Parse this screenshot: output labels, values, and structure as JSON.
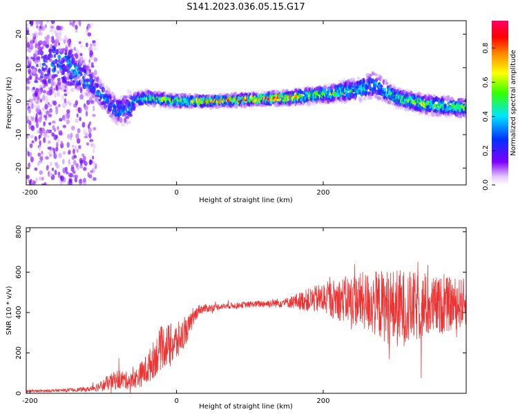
{
  "title": "S141.2023.036.05.15.G17",
  "colors": {
    "snr_line": "#ee3333",
    "frame": "#000000"
  },
  "chart_data": [
    {
      "type": "heatmap",
      "xlabel": "Height of straight line (km)",
      "ylabel": "Frequency (Hz)",
      "xlim": [
        -205,
        395
      ],
      "ylim": [
        -25,
        24
      ],
      "xticks": [
        -200,
        0,
        200
      ],
      "yticks": [
        -20,
        -10,
        0,
        10,
        20
      ],
      "colorbar": {
        "label": "Normalized spectral amplitude",
        "range": [
          0,
          0.96
        ],
        "ticks": [
          {
            "value": 0.0,
            "label": "0.0"
          },
          {
            "value": 0.2,
            "label": "0.2"
          },
          {
            "value": 0.4,
            "label": "0.4"
          },
          {
            "value": 0.6,
            "label": "0.6"
          },
          {
            "value": 0.8,
            "label": "0.8"
          }
        ],
        "colormap": "rainbow (white - violet - blue - cyan - green - yellow - red - magenta)"
      },
      "ridge": [
        {
          "x": -200,
          "f": 9,
          "w": 13,
          "a": 0.12
        },
        {
          "x": -170,
          "f": 11,
          "w": 8,
          "a": 0.25
        },
        {
          "x": -150,
          "f": 11,
          "w": 6,
          "a": 0.35
        },
        {
          "x": -130,
          "f": 8,
          "w": 4,
          "a": 0.35
        },
        {
          "x": -110,
          "f": 4,
          "w": 3,
          "a": 0.3
        },
        {
          "x": -95,
          "f": 0,
          "w": 3,
          "a": 0.3
        },
        {
          "x": -80,
          "f": -3,
          "w": 3,
          "a": 0.28
        },
        {
          "x": -65,
          "f": -2,
          "w": 4,
          "a": 0.25
        },
        {
          "x": -55,
          "f": 0.5,
          "w": 1.5,
          "a": 0.4
        },
        {
          "x": -40,
          "f": 1,
          "w": 1.5,
          "a": 0.45
        },
        {
          "x": 0,
          "f": 0,
          "w": 1.3,
          "a": 0.55
        },
        {
          "x": 50,
          "f": 0,
          "w": 1.2,
          "a": 0.65
        },
        {
          "x": 100,
          "f": 0.5,
          "w": 1.2,
          "a": 0.75
        },
        {
          "x": 150,
          "f": 1,
          "w": 1.4,
          "a": 0.7
        },
        {
          "x": 200,
          "f": 2,
          "w": 1.8,
          "a": 0.5
        },
        {
          "x": 250,
          "f": 3.5,
          "w": 2.5,
          "a": 0.4
        },
        {
          "x": 270,
          "f": 5,
          "w": 3,
          "a": 0.3
        },
        {
          "x": 300,
          "f": 1,
          "w": 2,
          "a": 0.45
        },
        {
          "x": 340,
          "f": -1,
          "w": 2,
          "a": 0.5
        },
        {
          "x": 395,
          "f": -2,
          "w": 2,
          "a": 0.45
        }
      ]
    },
    {
      "type": "line",
      "xlabel": "Height of straight line (km)",
      "ylabel": "SNR (10 * v/v)",
      "xlim": [
        -205,
        395
      ],
      "ylim": [
        0,
        820
      ],
      "xticks": [
        -200,
        0,
        200
      ],
      "yticks": [
        0,
        200,
        400,
        600,
        800
      ],
      "series": [
        {
          "points": [
            {
              "x": -205,
              "y": 10,
              "spread": 5
            },
            {
              "x": -150,
              "y": 15,
              "spread": 8
            },
            {
              "x": -120,
              "y": 20,
              "spread": 12
            },
            {
              "x": -100,
              "y": 40,
              "spread": 30
            },
            {
              "x": -80,
              "y": 70,
              "spread": 50
            },
            {
              "x": -60,
              "y": 60,
              "spread": 40
            },
            {
              "x": -40,
              "y": 120,
              "spread": 80
            },
            {
              "x": -20,
              "y": 230,
              "spread": 110
            },
            {
              "x": 0,
              "y": 250,
              "spread": 100
            },
            {
              "x": 15,
              "y": 320,
              "spread": 60
            },
            {
              "x": 30,
              "y": 415,
              "spread": 25
            },
            {
              "x": 60,
              "y": 430,
              "spread": 15
            },
            {
              "x": 100,
              "y": 440,
              "spread": 15
            },
            {
              "x": 150,
              "y": 450,
              "spread": 25
            },
            {
              "x": 200,
              "y": 470,
              "spread": 80
            },
            {
              "x": 250,
              "y": 460,
              "spread": 140
            },
            {
              "x": 300,
              "y": 420,
              "spread": 200
            },
            {
              "x": 350,
              "y": 430,
              "spread": 150
            },
            {
              "x": 395,
              "y": 450,
              "spread": 120
            }
          ]
        }
      ]
    }
  ]
}
